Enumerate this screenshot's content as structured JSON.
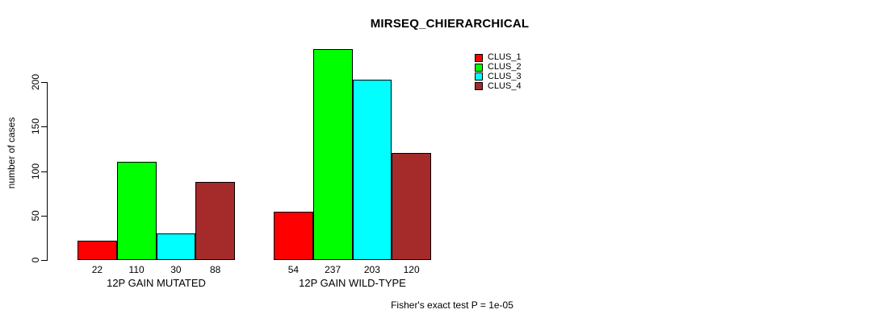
{
  "title": "MIRSEQ_CHIERARCHICAL",
  "colors": {
    "background": "#ffffff",
    "bar_border": "#000000",
    "text": "#000000"
  },
  "chart_data": {
    "type": "bar",
    "title": "MIRSEQ_CHIERARCHICAL",
    "xlabel": "",
    "ylabel": "number of cases",
    "ylim": [
      0,
      200
    ],
    "y_ticks": [
      0,
      50,
      100,
      150,
      200
    ],
    "grid": false,
    "legend_position": "top-right",
    "categories": [
      "12P GAIN MUTATED",
      "12P GAIN WILD-TYPE"
    ],
    "series": [
      {
        "name": "CLUS_1",
        "color": "#ff0000",
        "values": [
          22,
          54
        ]
      },
      {
        "name": "CLUS_2",
        "color": "#00ff00",
        "values": [
          110,
          237
        ]
      },
      {
        "name": "CLUS_3",
        "color": "#00ffff",
        "values": [
          30,
          203
        ]
      },
      {
        "name": "CLUS_4",
        "color": "#a52a2a",
        "values": [
          88,
          120
        ]
      }
    ],
    "bar_value_labels": [
      [
        "22",
        "110",
        "30",
        "88"
      ],
      [
        "54",
        "237",
        "203",
        "120"
      ]
    ],
    "annotation": "Fisher's exact test P = 1e-05"
  }
}
